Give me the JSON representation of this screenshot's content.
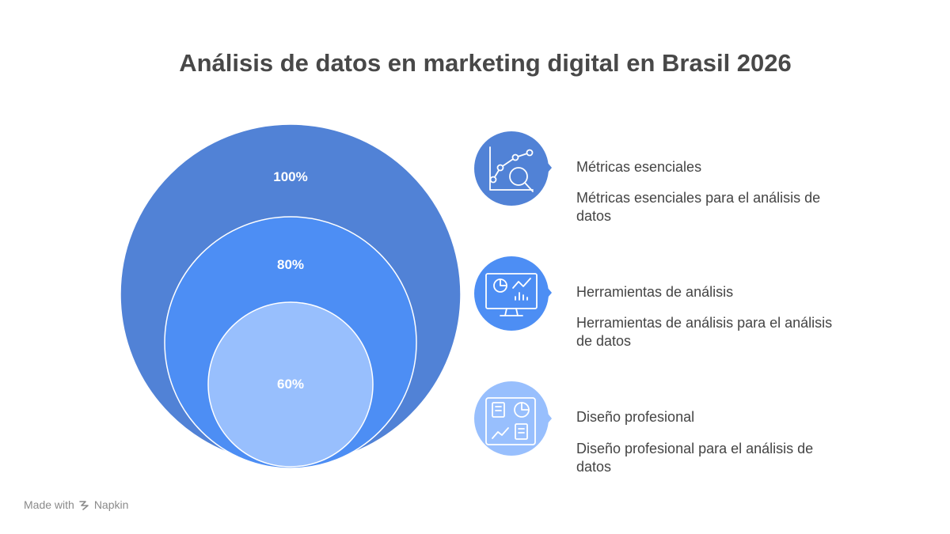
{
  "title": "Análisis de datos en marketing digital en Brasil 2026",
  "colors": {
    "outer_circle": "#5182D6",
    "middle_circle": "#4D8EF4",
    "inner_circle": "#98BFFD",
    "circle_stroke": "#ffffff",
    "text": "#444444"
  },
  "circles": [
    {
      "label": "100%",
      "value": 100
    },
    {
      "label": "80%",
      "value": 80
    },
    {
      "label": "60%",
      "value": 60
    }
  ],
  "items": [
    {
      "icon": "line-chart-magnifier-icon",
      "heading": "Métricas esenciales",
      "description": "Métricas esenciales para el análisis de datos",
      "color": "#5182D6"
    },
    {
      "icon": "monitor-dashboard-icon",
      "heading": "Herramientas de análisis",
      "description": "Herramientas de análisis para el análisis de datos",
      "color": "#4D8EF4"
    },
    {
      "icon": "design-layout-icon",
      "heading": "Diseño profesional",
      "description": "Diseño profesional para el análisis de datos",
      "color": "#98BFFD"
    }
  ],
  "footer": {
    "made_with": "Made with",
    "brand": "Napkin"
  }
}
